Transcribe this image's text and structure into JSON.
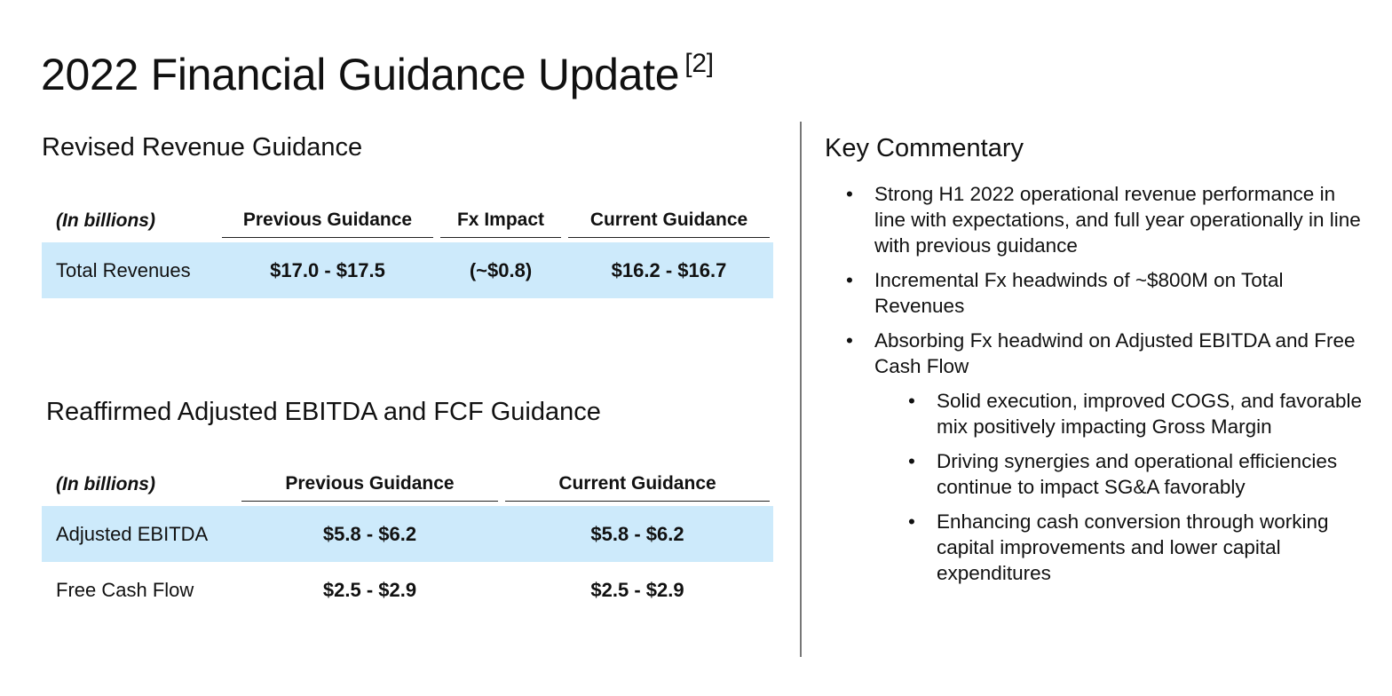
{
  "title": {
    "text": "2022 Financial Guidance Update",
    "footnote": "[2]"
  },
  "revenue": {
    "heading": "Revised Revenue Guidance",
    "headers": [
      "(In billions)",
      "Previous Guidance",
      "Fx Impact",
      "Current Guidance"
    ],
    "rows": [
      {
        "label": "Total Revenues",
        "previous": "$17.0 - $17.5",
        "fx": "(~$0.8)",
        "current": "$16.2 - $16.7"
      }
    ]
  },
  "ebitda": {
    "heading": "Reaffirmed Adjusted EBITDA and FCF Guidance",
    "headers": [
      "(In billions)",
      "Previous Guidance",
      "Current Guidance"
    ],
    "rows": [
      {
        "label": "Adjusted EBITDA",
        "previous": "$5.8 - $6.2",
        "current": "$5.8 - $6.2"
      },
      {
        "label": "Free Cash Flow",
        "previous": "$2.5 - $2.9",
        "current": "$2.5 - $2.9"
      }
    ]
  },
  "commentary": {
    "heading": "Key Commentary",
    "bullet": "•",
    "items": [
      "Strong H1 2022 operational revenue performance in line with expectations, and full year operationally in line with previous guidance",
      "Incremental Fx headwinds of ~$800M on Total Revenues",
      "Absorbing Fx headwind on Adjusted EBITDA and Free Cash Flow"
    ],
    "subitems": [
      "Solid execution, improved COGS, and favorable mix positively impacting Gross Margin",
      "Driving synergies and operational efficiencies continue to impact SG&A favorably",
      "Enhancing cash conversion through working capital improvements and lower capital expenditures"
    ]
  },
  "colors": {
    "row_highlight": "#cdeafb",
    "text": "#111111",
    "divider": "#777777"
  }
}
